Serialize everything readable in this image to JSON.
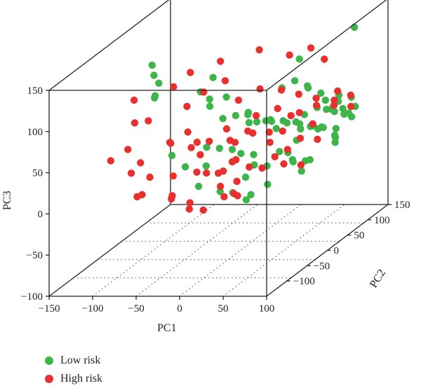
{
  "chart_data": {
    "type": "scatter",
    "projection": "3d",
    "title": "",
    "xlabel": "PC1",
    "ylabel": "PC2",
    "zlabel": "PC3",
    "xlim": [
      -150,
      100
    ],
    "ylim": [
      -150,
      150
    ],
    "zlim": [
      -100,
      150
    ],
    "x_ticks": [
      "−150",
      "−100",
      "−50",
      "0",
      "50",
      "100"
    ],
    "y_ticks": [
      "−100",
      "−50",
      "0",
      "50",
      "100",
      "150"
    ],
    "z_ticks": [
      "−100",
      "−50",
      "0",
      "50",
      "100",
      "150"
    ],
    "legend_position": "bottom-left",
    "series": [
      {
        "name": "Low risk",
        "color": "#3db54a",
        "points": [
          [
            80,
            110,
            130
          ],
          [
            -120,
            40,
            110
          ],
          [
            40,
            60,
            110
          ],
          [
            -110,
            35,
            90
          ],
          [
            -90,
            -20,
            120
          ],
          [
            -80,
            -40,
            100
          ],
          [
            -70,
            -60,
            110
          ],
          [
            -50,
            40,
            95
          ],
          [
            -55,
            20,
            85
          ],
          [
            -40,
            10,
            80
          ],
          [
            -35,
            0,
            75
          ],
          [
            -30,
            30,
            75
          ],
          [
            -20,
            0,
            60
          ],
          [
            -10,
            10,
            60
          ],
          [
            0,
            20,
            60
          ],
          [
            10,
            0,
            55
          ],
          [
            20,
            20,
            50
          ],
          [
            30,
            10,
            55
          ],
          [
            40,
            20,
            50
          ],
          [
            50,
            30,
            45
          ],
          [
            55,
            40,
            50
          ],
          [
            60,
            20,
            40
          ],
          [
            70,
            30,
            40
          ],
          [
            65,
            50,
            55
          ],
          [
            75,
            40,
            35
          ],
          [
            80,
            20,
            40
          ],
          [
            85,
            50,
            50
          ],
          [
            90,
            40,
            25
          ],
          [
            95,
            30,
            20
          ],
          [
            100,
            20,
            30
          ],
          [
            -20,
            -40,
            40
          ],
          [
            -10,
            -30,
            35
          ],
          [
            0,
            -20,
            30
          ],
          [
            10,
            -20,
            25
          ],
          [
            20,
            -10,
            20
          ],
          [
            30,
            -30,
            15
          ],
          [
            40,
            -20,
            10
          ],
          [
            45,
            0,
            20
          ],
          [
            50,
            10,
            15
          ],
          [
            60,
            0,
            10
          ],
          [
            70,
            10,
            5
          ],
          [
            75,
            -10,
            0
          ],
          [
            80,
            0,
            10
          ],
          [
            20,
            60,
            75
          ],
          [
            30,
            70,
            80
          ],
          [
            40,
            80,
            70
          ],
          [
            50,
            60,
            75
          ],
          [
            60,
            70,
            65
          ],
          [
            70,
            60,
            60
          ],
          [
            80,
            70,
            55
          ],
          [
            90,
            60,
            50
          ],
          [
            95,
            80,
            45
          ],
          [
            -60,
            -40,
            30
          ],
          [
            -40,
            -50,
            20
          ],
          [
            -30,
            -20,
            10
          ],
          [
            -20,
            -60,
            0
          ],
          [
            0,
            -50,
            -10
          ],
          [
            10,
            -40,
            -15
          ],
          [
            30,
            -50,
            -20
          ],
          [
            20,
            -30,
            0
          ],
          [
            35,
            40,
            40
          ],
          [
            45,
            50,
            35
          ],
          [
            55,
            55,
            30
          ],
          [
            65,
            65,
            25
          ],
          [
            75,
            75,
            20
          ],
          [
            85,
            30,
            60
          ],
          [
            90,
            50,
            70
          ],
          [
            -10,
            40,
            50
          ],
          [
            5,
            30,
            45
          ],
          [
            15,
            45,
            40
          ],
          [
            25,
            35,
            35
          ],
          [
            60,
            10,
            30
          ],
          [
            70,
            -20,
            15
          ],
          [
            50,
            -40,
            -5
          ],
          [
            40,
            -60,
            -10
          ],
          [
            100,
            60,
            40
          ],
          [
            95,
            70,
            60
          ],
          [
            85,
            85,
            35
          ],
          [
            75,
            95,
            30
          ],
          [
            65,
            85,
            40
          ]
        ]
      },
      {
        "name": "High risk",
        "color": "#e8312f",
        "points": [
          [
            -150,
            60,
            60
          ],
          [
            -140,
            40,
            40
          ],
          [
            -135,
            -30,
            20
          ],
          [
            -130,
            10,
            -10
          ],
          [
            -120,
            -20,
            30
          ],
          [
            -115,
            20,
            50
          ],
          [
            -110,
            -10,
            10
          ],
          [
            -100,
            -40,
            -20
          ],
          [
            -95,
            30,
            20
          ],
          [
            -90,
            -30,
            0
          ],
          [
            -85,
            -60,
            -10
          ],
          [
            -80,
            0,
            30
          ],
          [
            -75,
            40,
            10
          ],
          [
            -70,
            -20,
            -30
          ],
          [
            -65,
            10,
            40
          ],
          [
            -60,
            30,
            5
          ],
          [
            -55,
            -50,
            -15
          ],
          [
            -50,
            0,
            -5
          ],
          [
            -45,
            20,
            25
          ],
          [
            -40,
            -40,
            -35
          ],
          [
            -35,
            50,
            15
          ],
          [
            -30,
            10,
            -10
          ],
          [
            -25,
            -30,
            5
          ],
          [
            -20,
            30,
            20
          ],
          [
            -15,
            -10,
            0
          ],
          [
            -10,
            40,
            30
          ],
          [
            -5,
            0,
            10
          ],
          [
            0,
            -20,
            15
          ],
          [
            5,
            20,
            35
          ],
          [
            10,
            50,
            25
          ],
          [
            15,
            -10,
            5
          ],
          [
            20,
            30,
            20
          ],
          [
            25,
            0,
            0
          ],
          [
            30,
            40,
            30
          ],
          [
            35,
            10,
            10
          ],
          [
            40,
            60,
            45
          ],
          [
            45,
            20,
            15
          ],
          [
            50,
            0,
            5
          ],
          [
            55,
            30,
            25
          ],
          [
            60,
            50,
            35
          ],
          [
            65,
            10,
            0
          ],
          [
            70,
            40,
            20
          ],
          [
            75,
            70,
            50
          ],
          [
            80,
            60,
            60
          ],
          [
            85,
            90,
            55
          ],
          [
            90,
            80,
            45
          ],
          [
            -60,
            80,
            100
          ],
          [
            -90,
            70,
            90
          ],
          [
            -20,
            90,
            110
          ],
          [
            10,
            100,
            100
          ],
          [
            30,
            110,
            105
          ],
          [
            50,
            100,
            95
          ],
          [
            -40,
            -80,
            20
          ],
          [
            -30,
            -60,
            -20
          ],
          [
            -10,
            -70,
            -25
          ],
          [
            0,
            -40,
            -20
          ],
          [
            20,
            -50,
            -15
          ],
          [
            10,
            -30,
            -5
          ],
          [
            -70,
            60,
            70
          ],
          [
            -50,
            70,
            80
          ],
          [
            -30,
            60,
            60
          ],
          [
            -10,
            70,
            70
          ],
          [
            10,
            80,
            65
          ],
          [
            30,
            80,
            60
          ],
          [
            50,
            80,
            55
          ],
          [
            70,
            90,
            60
          ],
          [
            -100,
            50,
            80
          ],
          [
            -80,
            40,
            60
          ],
          [
            -5,
            50,
            45
          ],
          [
            15,
            60,
            50
          ],
          [
            35,
            50,
            45
          ],
          [
            55,
            70,
            50
          ],
          [
            -25,
            20,
            40
          ],
          [
            -45,
            -10,
            35
          ],
          [
            5,
            -60,
            0
          ],
          [
            25,
            -70,
            -5
          ]
        ]
      }
    ]
  }
}
